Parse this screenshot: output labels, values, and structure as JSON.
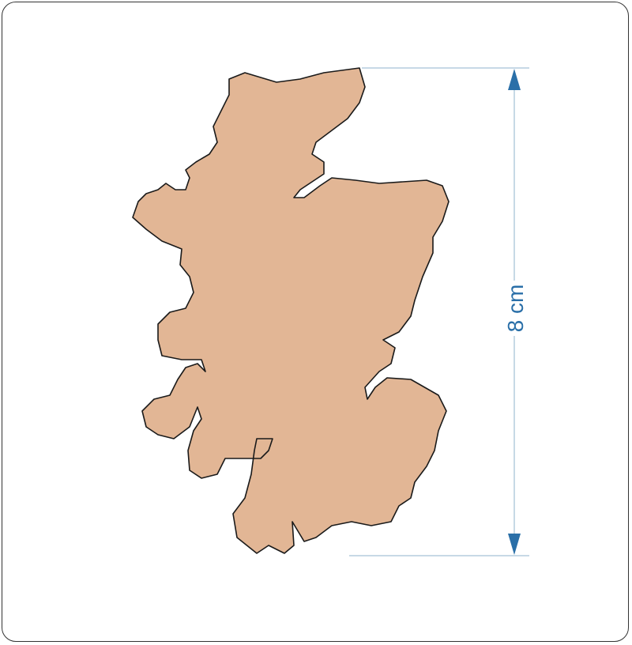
{
  "shape": {
    "name": "Scotland",
    "fill_color": "#e2b695",
    "outline_color": "#1a1a1a"
  },
  "dimension": {
    "label": "8 cm",
    "color": "#2a6fa8"
  }
}
